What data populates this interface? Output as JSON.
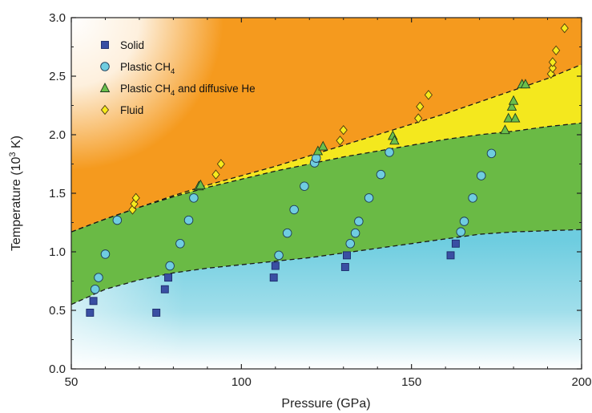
{
  "chart_data": {
    "type": "scatter",
    "title": "",
    "xlabel": "Pressure (GPa)",
    "ylabel_parts": {
      "main": "Temperature (10",
      "sup": "3",
      "tail": " K)"
    },
    "xlim": [
      50,
      200
    ],
    "ylim": [
      0,
      3.0
    ],
    "xticks": [
      50,
      100,
      150,
      200
    ],
    "xtick_labels": [
      "50",
      "100",
      "150",
      "200"
    ],
    "yticks": [
      0,
      0.5,
      1.0,
      1.5,
      2.0,
      2.5,
      3.0
    ],
    "ytick_labels": [
      "0.0",
      "0.5",
      "1.0",
      "1.5",
      "2.0",
      "2.5",
      "3.0"
    ],
    "legend_position": "top-left",
    "colors": {
      "solid": "#3a4fa3",
      "plastic": "#6fcde0",
      "plastic_he": "#6abf4b",
      "fluid": "#f6ea1c",
      "region_fluid": "#f59a1e",
      "region_superionic": "#f4e81e",
      "region_plastic": "#6aba45",
      "region_solid": "#6ecde0",
      "boundary": "#1a1a1a"
    },
    "boundaries": [
      {
        "x": [
          50,
          60,
          70,
          80,
          90,
          100,
          110,
          120,
          130,
          140,
          150,
          160,
          170,
          180,
          190,
          200
        ],
        "y": [
          0.55,
          0.68,
          0.76,
          0.82,
          0.86,
          0.89,
          0.92,
          0.95,
          0.99,
          1.03,
          1.07,
          1.11,
          1.15,
          1.17,
          1.18,
          1.19
        ]
      },
      {
        "x": [
          50,
          60,
          70,
          80,
          90,
          100,
          110,
          120,
          130,
          140,
          150,
          160,
          170,
          180,
          190,
          200
        ],
        "y": [
          1.17,
          1.28,
          1.38,
          1.47,
          1.55,
          1.62,
          1.69,
          1.75,
          1.81,
          1.86,
          1.91,
          1.96,
          2.0,
          2.03,
          2.07,
          2.1
        ]
      },
      {
        "x": [
          50,
          60,
          70,
          80,
          90,
          100,
          110,
          120,
          130,
          140,
          150,
          160,
          170,
          180,
          190,
          200
        ],
        "y": [
          1.17,
          1.28,
          1.38,
          1.48,
          1.57,
          1.65,
          1.73,
          1.82,
          1.91,
          2.0,
          2.09,
          2.18,
          2.28,
          2.38,
          2.48,
          2.6
        ]
      }
    ],
    "series": [
      {
        "name": "Solid",
        "marker": "square",
        "points": [
          [
            55.5,
            0.48
          ],
          [
            56.5,
            0.58
          ],
          [
            75.0,
            0.48
          ],
          [
            77.5,
            0.68
          ],
          [
            78.5,
            0.78
          ],
          [
            109.5,
            0.78
          ],
          [
            110.0,
            0.88
          ],
          [
            130.5,
            0.87
          ],
          [
            131.0,
            0.97
          ],
          [
            161.5,
            0.97
          ],
          [
            163.0,
            1.07
          ]
        ]
      },
      {
        "name": "Plastic CH",
        "name_sub": "4",
        "marker": "circle",
        "points": [
          [
            57.0,
            0.68
          ],
          [
            58.0,
            0.78
          ],
          [
            60.0,
            0.98
          ],
          [
            63.5,
            1.27
          ],
          [
            79.0,
            0.88
          ],
          [
            82.0,
            1.07
          ],
          [
            84.5,
            1.27
          ],
          [
            86.0,
            1.46
          ],
          [
            111.0,
            0.97
          ],
          [
            113.5,
            1.16
          ],
          [
            115.5,
            1.36
          ],
          [
            118.5,
            1.56
          ],
          [
            121.5,
            1.76
          ],
          [
            122.0,
            1.8
          ],
          [
            132.0,
            1.07
          ],
          [
            133.5,
            1.16
          ],
          [
            134.5,
            1.26
          ],
          [
            137.5,
            1.46
          ],
          [
            141.0,
            1.66
          ],
          [
            143.5,
            1.85
          ],
          [
            164.5,
            1.17
          ],
          [
            165.5,
            1.26
          ],
          [
            168.0,
            1.46
          ],
          [
            170.5,
            1.65
          ],
          [
            173.5,
            1.84
          ]
        ]
      },
      {
        "name": "Plastic CH",
        "name_sub": "4",
        "name_tail": " and diffusive He",
        "marker": "triangle",
        "points": [
          [
            87.5,
            1.56
          ],
          [
            88.0,
            1.57
          ],
          [
            122.5,
            1.86
          ],
          [
            124.0,
            1.9
          ],
          [
            144.5,
            1.99
          ],
          [
            145.0,
            1.95
          ],
          [
            177.5,
            2.04
          ],
          [
            178.5,
            2.14
          ],
          [
            179.5,
            2.24
          ],
          [
            180.0,
            2.29
          ],
          [
            180.5,
            2.14
          ],
          [
            182.5,
            2.43
          ],
          [
            183.5,
            2.43
          ]
        ]
      },
      {
        "name": "Fluid",
        "marker": "diamond",
        "points": [
          [
            68.0,
            1.36
          ],
          [
            68.5,
            1.41
          ],
          [
            69.0,
            1.46
          ],
          [
            92.5,
            1.66
          ],
          [
            94.0,
            1.75
          ],
          [
            129.0,
            1.95
          ],
          [
            130.0,
            2.04
          ],
          [
            152.0,
            2.14
          ],
          [
            152.5,
            2.24
          ],
          [
            155.0,
            2.34
          ],
          [
            191.0,
            2.52
          ],
          [
            191.5,
            2.57
          ],
          [
            191.5,
            2.62
          ],
          [
            192.5,
            2.72
          ],
          [
            195.0,
            2.91
          ]
        ]
      }
    ]
  }
}
